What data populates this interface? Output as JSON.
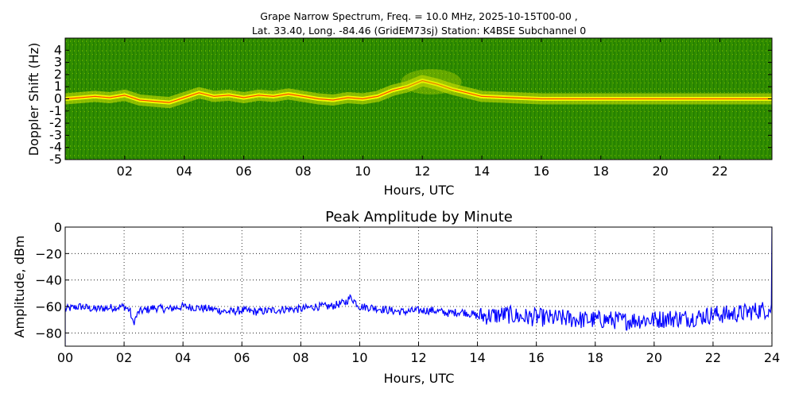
{
  "figure": {
    "title_line1": "Grape Narrow Spectrum, Freq. = 10.0 MHz, 2025-10-15T00-00 ,",
    "title_line2": "Lat.  33.40, Long. -84.46 (GridEM73sj) Station: K4BSE Subchannel 0"
  },
  "chart_data": [
    {
      "type": "heatmap",
      "title": "",
      "xlabel": "Hours, UTC",
      "ylabel": "Doppler Shift (Hz)",
      "xlim": [
        0,
        23.75
      ],
      "ylim": [
        -5,
        5
      ],
      "x_tick_labels": [
        "02",
        "04",
        "06",
        "08",
        "10",
        "12",
        "14",
        "16",
        "18",
        "20",
        "22"
      ],
      "x_tick_values": [
        2,
        4,
        6,
        8,
        10,
        12,
        14,
        16,
        18,
        20,
        22
      ],
      "y_tick_labels": [
        "4",
        "3",
        "2",
        "1",
        "0",
        "-1",
        "-2",
        "-3",
        "-4",
        "-5"
      ],
      "y_tick_values": [
        4,
        3,
        2,
        1,
        0,
        -1,
        -2,
        -3,
        -4,
        -5
      ],
      "colors": {
        "background": "#2d8a00",
        "mid": "#8fc400",
        "high": "#ffff00",
        "peak": "#ff2a00"
      },
      "doppler_trace": {
        "x": [
          0,
          0.5,
          1,
          1.5,
          2,
          2.5,
          3,
          3.5,
          4,
          4.5,
          5,
          5.5,
          6,
          6.5,
          7,
          7.5,
          8,
          8.5,
          9,
          9.5,
          10,
          10.5,
          11,
          11.5,
          12,
          12.5,
          13,
          13.5,
          14,
          15,
          16,
          17,
          18,
          19,
          20,
          21,
          22,
          23,
          23.75
        ],
        "y": [
          0,
          0.1,
          0.2,
          0.1,
          0.3,
          -0.1,
          -0.2,
          -0.3,
          0.1,
          0.5,
          0.2,
          0.3,
          0.1,
          0.3,
          0.2,
          0.4,
          0.2,
          0.0,
          -0.1,
          0.1,
          0.0,
          0.2,
          0.7,
          1.0,
          1.5,
          1.2,
          0.8,
          0.5,
          0.2,
          0.1,
          0.0,
          0.0,
          0.0,
          0.0,
          0.0,
          0.0,
          0.0,
          0.0,
          0.0
        ]
      }
    },
    {
      "type": "line",
      "title": "Peak Amplitude by Minute",
      "xlabel": "Hours, UTC",
      "ylabel": "Amplitude, dBm",
      "xlim": [
        0,
        24
      ],
      "ylim": [
        -90,
        0
      ],
      "grid": true,
      "x_tick_labels": [
        "00",
        "02",
        "04",
        "06",
        "08",
        "10",
        "12",
        "14",
        "16",
        "18",
        "20",
        "22",
        "24"
      ],
      "x_tick_values": [
        0,
        2,
        4,
        6,
        8,
        10,
        12,
        14,
        16,
        18,
        20,
        22,
        24
      ],
      "y_tick_labels": [
        "0",
        "−20",
        "−40",
        "−60",
        "−80"
      ],
      "y_tick_values": [
        0,
        -20,
        -40,
        -60,
        -80
      ],
      "line_color": "#0000ff",
      "series": [
        {
          "x": [
            0,
            0.5,
            1,
            1.5,
            2,
            2.2,
            2.3,
            2.5,
            3,
            3.5,
            4,
            4.5,
            5,
            5.5,
            6,
            6.5,
            7,
            7.5,
            8,
            8.5,
            9,
            9.5,
            9.7,
            10,
            10.5,
            11,
            11.5,
            12,
            12.5,
            13,
            13.5,
            14,
            14.5,
            15,
            15.5,
            16,
            16.5,
            17,
            17.5,
            18,
            18.5,
            19,
            19.5,
            20,
            20.5,
            21,
            21.5,
            22,
            22.5,
            23,
            23.5,
            23.98
          ],
          "y": [
            -62,
            -60,
            -62,
            -61,
            -60,
            -63,
            -73,
            -64,
            -61,
            -62,
            -60,
            -61,
            -62,
            -64,
            -63,
            -64,
            -63,
            -62,
            -62,
            -60,
            -60,
            -57,
            -53,
            -60,
            -61,
            -63,
            -64,
            -63,
            -63,
            -65,
            -64,
            -67,
            -67,
            -66,
            -68,
            -68,
            -69,
            -69,
            -70,
            -70,
            -70,
            -71,
            -70,
            -70,
            -69,
            -69,
            -68,
            -66,
            -66,
            -65,
            -63,
            -62
          ]
        }
      ]
    }
  ]
}
